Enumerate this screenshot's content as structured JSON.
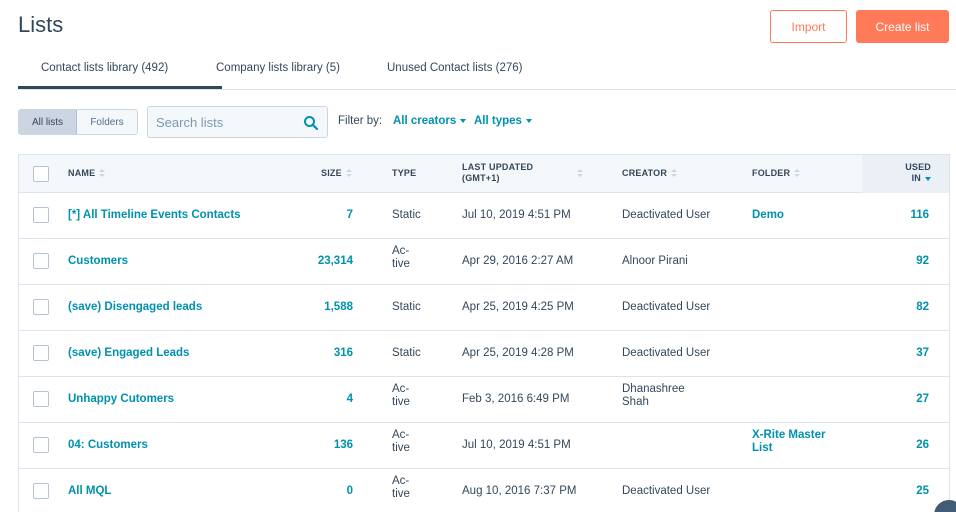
{
  "header": {
    "title": "Lists",
    "import_label": "Import",
    "create_label": "Create list"
  },
  "tabs": [
    {
      "label": "Contact lists library (492)"
    },
    {
      "label": "Company lists library (5)"
    },
    {
      "label": "Unused Contact lists (276)"
    }
  ],
  "toolbar": {
    "all_lists": "All lists",
    "folders": "Folders",
    "search_placeholder": "Search lists",
    "filter_by": "Filter by:",
    "creators": "All creators",
    "types": "All types"
  },
  "table": {
    "headers": {
      "name": "NAME",
      "size": "SIZE",
      "type": "TYPE",
      "updated": "LAST UPDATED",
      "updated_tz": "(GMT+1)",
      "creator": "CREATOR",
      "folder": "FOLDER",
      "used_1": "USED",
      "used_2": "IN"
    },
    "rows": [
      {
        "name": "[*] All Timeline Events Contacts",
        "size": "7",
        "type": "Static",
        "type_2": "",
        "updated": "Jul 10, 2019 4:51 PM",
        "creator": "Deactivated User",
        "creator_2": "",
        "folder": "Demo",
        "folder_2": "",
        "used": "116"
      },
      {
        "name": "Customers",
        "size": "23,314",
        "type": "Ac-",
        "type_2": "tive",
        "updated": "Apr 29, 2016 2:27 AM",
        "creator": "Alnoor Pirani",
        "creator_2": "",
        "folder": "",
        "folder_2": "",
        "used": "92"
      },
      {
        "name": "(save) Disengaged leads",
        "size": "1,588",
        "type": "Static",
        "type_2": "",
        "updated": "Apr 25, 2019 4:25 PM",
        "creator": "Deactivated User",
        "creator_2": "",
        "folder": "",
        "folder_2": "",
        "used": "82"
      },
      {
        "name": "(save) Engaged Leads",
        "size": "316",
        "type": "Static",
        "type_2": "",
        "updated": "Apr 25, 2019 4:28 PM",
        "creator": "Deactivated User",
        "creator_2": "",
        "folder": "",
        "folder_2": "",
        "used": "37"
      },
      {
        "name": "Unhappy Cutomers",
        "size": "4",
        "type": "Ac-",
        "type_2": "tive",
        "updated": "Feb 3, 2016 6:49 PM",
        "creator": "Dhanashree",
        "creator_2": "Shah",
        "folder": "",
        "folder_2": "",
        "used": "27"
      },
      {
        "name": "04: Customers",
        "size": "136",
        "type": "Ac-",
        "type_2": "tive",
        "updated": "Jul 10, 2019 4:51 PM",
        "creator": "",
        "creator_2": "",
        "folder": "X-Rite Master",
        "folder_2": "List",
        "used": "26"
      },
      {
        "name": "All MQL",
        "size": "0",
        "type": "Ac-",
        "type_2": "tive",
        "updated": "Aug 10, 2016 7:37 PM",
        "creator": "Deactivated User",
        "creator_2": "",
        "folder": "",
        "folder_2": "",
        "used": "25"
      }
    ]
  }
}
